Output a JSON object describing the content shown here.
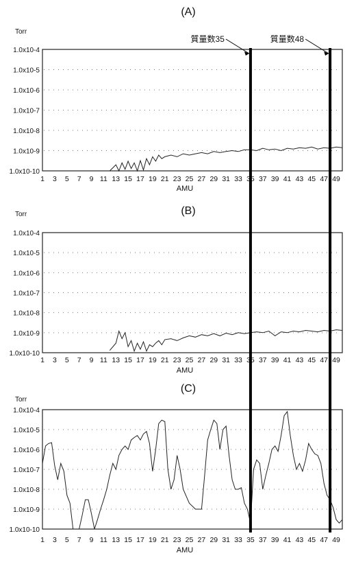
{
  "figure": {
    "marker_labels": [
      "質量数35",
      "質量数48"
    ],
    "marker_amu": [
      35,
      48
    ]
  },
  "chart_data": [
    {
      "type": "line",
      "panel": "(A)",
      "title": "(A)",
      "unit": "Torr",
      "xlabel": "AMU",
      "ylabel": "",
      "y_log_scale": true,
      "ylim": [
        1e-10,
        0.0001
      ],
      "y_ticks": [
        "1.0x10-4",
        "1.0x10-5",
        "1.0x10-6",
        "1.0x10-7",
        "1.0x10-8",
        "1.0x10-9",
        "1.0x10-10"
      ],
      "xlim": [
        1,
        50
      ],
      "x_ticks": [
        1,
        3,
        5,
        7,
        9,
        11,
        13,
        15,
        17,
        19,
        21,
        23,
        25,
        27,
        29,
        31,
        33,
        35,
        37,
        39,
        41,
        43,
        45,
        47,
        49
      ],
      "grid": "dotted horizontal",
      "series": [
        {
          "x": [
            12,
            13,
            13.5,
            14,
            14.5,
            15,
            15.5,
            16,
            16.5,
            17,
            17.5,
            18,
            18.5,
            19,
            19.5,
            20,
            20.5,
            21,
            22,
            23,
            24,
            25,
            26,
            27,
            28,
            29,
            30,
            31,
            32,
            33,
            34,
            35,
            36,
            37,
            38,
            39,
            40,
            41,
            42,
            43,
            44,
            45,
            46,
            47,
            48,
            49,
            50
          ],
          "y": [
            1e-10,
            2e-10,
            1e-10,
            2.5e-10,
            1.2e-10,
            3e-10,
            1.3e-10,
            2.5e-10,
            1e-10,
            3.2e-10,
            1.1e-10,
            4e-10,
            2e-10,
            5e-10,
            3e-10,
            6e-10,
            4e-10,
            5e-10,
            6e-10,
            5e-10,
            7e-10,
            6e-10,
            7e-10,
            8e-10,
            7e-10,
            9e-10,
            8e-10,
            9e-10,
            1e-09,
            9e-10,
            1.1e-09,
            1.1e-09,
            1e-09,
            1.3e-09,
            1.1e-09,
            1.2e-09,
            1e-09,
            1.3e-09,
            1.2e-09,
            1.4e-09,
            1.3e-09,
            1.5e-09,
            1.2e-09,
            1.4e-09,
            1.3e-09,
            1.5e-09,
            1.4e-09
          ]
        }
      ]
    },
    {
      "type": "line",
      "panel": "(B)",
      "title": "(B)",
      "unit": "Torr",
      "xlabel": "AMU",
      "ylabel": "",
      "y_log_scale": true,
      "ylim": [
        1e-10,
        0.0001
      ],
      "y_ticks": [
        "1.0x10-4",
        "1.0x10-5",
        "1.0x10-6",
        "1.0x10-7",
        "1.0x10-8",
        "1.0x10-9",
        "1.0x10-10"
      ],
      "xlim": [
        1,
        50
      ],
      "x_ticks": [
        1,
        3,
        5,
        7,
        9,
        11,
        13,
        15,
        17,
        19,
        21,
        23,
        25,
        27,
        29,
        31,
        33,
        35,
        37,
        39,
        41,
        43,
        45,
        47,
        49
      ],
      "grid": "dotted horizontal",
      "series": [
        {
          "x": [
            12,
            13,
            13.5,
            14,
            14.5,
            15,
            15.5,
            16,
            16.5,
            17,
            17.5,
            18,
            18.5,
            19,
            19.5,
            20,
            20.5,
            21,
            22,
            23,
            24,
            25,
            26,
            27,
            28,
            29,
            30,
            31,
            32,
            33,
            34,
            35,
            36,
            37,
            38,
            39,
            40,
            41,
            42,
            43,
            44,
            45,
            46,
            47,
            48,
            49,
            50
          ],
          "y": [
            1.3e-10,
            3e-10,
            1.2e-09,
            5e-10,
            1e-09,
            2e-10,
            4e-10,
            1.2e-10,
            3e-10,
            1.5e-10,
            3.5e-10,
            1.2e-10,
            2.5e-10,
            2e-10,
            3e-10,
            4e-10,
            2.5e-10,
            4.5e-10,
            5e-10,
            4e-10,
            5.5e-10,
            7e-10,
            6e-10,
            8e-10,
            7e-10,
            9e-10,
            7e-10,
            9.5e-10,
            8e-10,
            1e-09,
            9e-10,
            1e-09,
            1.1e-09,
            1e-09,
            1.2e-09,
            7e-10,
            1.1e-09,
            1e-09,
            1.2e-09,
            1.1e-09,
            1.3e-09,
            1.2e-09,
            1.1e-09,
            1.3e-09,
            1.2e-09,
            1.4e-09,
            1.3e-09
          ]
        }
      ]
    },
    {
      "type": "line",
      "panel": "(C)",
      "title": "(C)",
      "unit": "Torr",
      "xlabel": "AMU",
      "ylabel": "",
      "y_log_scale": true,
      "ylim": [
        1e-10,
        0.0001
      ],
      "y_ticks": [
        "1.0x10-4",
        "1.0x10-5",
        "1.0x10-6",
        "1.0x10-7",
        "1.0x10-8",
        "1.0x10-9",
        "1.0x10-10"
      ],
      "xlim": [
        1,
        50
      ],
      "x_ticks": [
        1,
        3,
        5,
        7,
        9,
        11,
        13,
        15,
        17,
        19,
        21,
        23,
        25,
        27,
        29,
        31,
        33,
        35,
        37,
        39,
        41,
        43,
        45,
        47,
        49
      ],
      "grid": "dotted horizontal",
      "series": [
        {
          "x": [
            1,
            1.5,
            2,
            2.5,
            3,
            3.5,
            4,
            4.5,
            5,
            5.5,
            6,
            7,
            7.5,
            8,
            8.5,
            9,
            9.5,
            10,
            10.5,
            11,
            11.5,
            12,
            12.5,
            13,
            13.5,
            14,
            14.5,
            15,
            15.5,
            16,
            16.5,
            17,
            17.5,
            18,
            18.5,
            19,
            19.5,
            20,
            20.5,
            21,
            21.5,
            22,
            22.5,
            23,
            23.5,
            24,
            25,
            26,
            27,
            27.5,
            28,
            28.5,
            29,
            29.5,
            30,
            30.5,
            31,
            31.5,
            32,
            32.5,
            33,
            33.5,
            34,
            34.5,
            35,
            35.5,
            36,
            36.5,
            37,
            37.5,
            38,
            38.5,
            39,
            39.5,
            40,
            40.5,
            41,
            41.5,
            42,
            42.5,
            43,
            43.5,
            44,
            44.5,
            45,
            45.5,
            46,
            46.5,
            47,
            47.5,
            48,
            48.5,
            49,
            49.5,
            50
          ],
          "y": [
            2e-07,
            1.5e-06,
            2e-06,
            2.2e-06,
            1.5e-07,
            3e-08,
            2e-07,
            8e-08,
            5e-09,
            2e-09,
            1e-10,
            1e-10,
            5e-10,
            3e-09,
            3e-09,
            6e-10,
            1e-10,
            3e-10,
            1e-09,
            3e-09,
            1e-08,
            5e-08,
            2e-07,
            1e-07,
            5e-07,
            1e-06,
            1.5e-06,
            1e-06,
            3e-06,
            4e-06,
            5e-06,
            3e-06,
            6e-06,
            8e-06,
            2e-06,
            8e-08,
            1e-06,
            2e-05,
            3e-05,
            2.5e-05,
            1e-07,
            1e-08,
            3e-08,
            5e-07,
            1e-07,
            1e-08,
            2e-09,
            1e-09,
            1e-09,
            5e-08,
            3e-06,
            1e-05,
            3e-05,
            2e-05,
            1e-06,
            1e-05,
            1.5e-05,
            5e-07,
            3e-08,
            1e-08,
            1e-08,
            1.2e-08,
            2e-09,
            1e-09,
            2e-10,
            1e-07,
            3e-07,
            2e-07,
            1e-08,
            5e-08,
            2e-07,
            1e-06,
            1.5e-06,
            8e-07,
            5e-06,
            5e-05,
            8e-05,
            5e-06,
            5e-07,
            1e-07,
            2e-07,
            8e-08,
            3e-07,
            2e-06,
            1e-06,
            6e-07,
            5e-07,
            2e-07,
            2e-08,
            5e-09,
            3e-09,
            1.2e-09,
            3e-10,
            2e-10,
            3e-10
          ]
        }
      ]
    }
  ]
}
